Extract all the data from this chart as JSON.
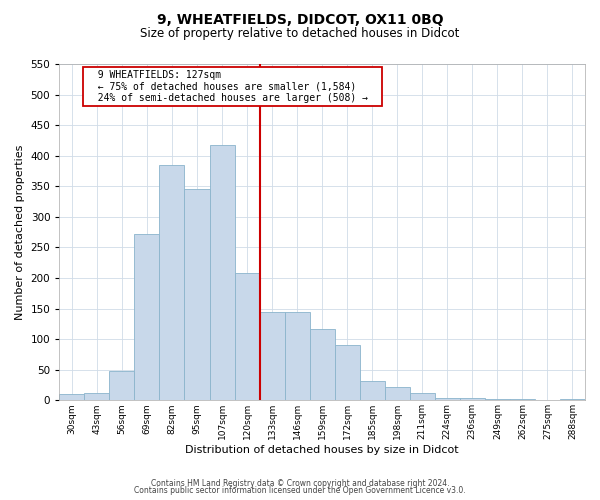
{
  "title": "9, WHEATFIELDS, DIDCOT, OX11 0BQ",
  "subtitle": "Size of property relative to detached houses in Didcot",
  "xlabel": "Distribution of detached houses by size in Didcot",
  "ylabel": "Number of detached properties",
  "bar_labels": [
    "30sqm",
    "43sqm",
    "56sqm",
    "69sqm",
    "82sqm",
    "95sqm",
    "107sqm",
    "120sqm",
    "133sqm",
    "146sqm",
    "159sqm",
    "172sqm",
    "185sqm",
    "198sqm",
    "211sqm",
    "224sqm",
    "236sqm",
    "249sqm",
    "262sqm",
    "275sqm",
    "288sqm"
  ],
  "bar_values": [
    10,
    12,
    48,
    272,
    385,
    345,
    418,
    208,
    144,
    144,
    117,
    90,
    32,
    22,
    12,
    3,
    3,
    2,
    2,
    0,
    2
  ],
  "bar_color": "#c8d8ea",
  "bar_edge_color": "#8ab4cc",
  "vline_x_index": 8,
  "vline_color": "#cc0000",
  "annotation_title": "9 WHEATFIELDS: 127sqm",
  "annotation_line1": "← 75% of detached houses are smaller (1,584)",
  "annotation_line2": "24% of semi-detached houses are larger (508) →",
  "annotation_box_color": "#ffffff",
  "annotation_box_edge_color": "#cc0000",
  "ylim": [
    0,
    550
  ],
  "yticks": [
    0,
    50,
    100,
    150,
    200,
    250,
    300,
    350,
    400,
    450,
    500,
    550
  ],
  "footer1": "Contains HM Land Registry data © Crown copyright and database right 2024.",
  "footer2": "Contains public sector information licensed under the Open Government Licence v3.0.",
  "bg_color": "#ffffff",
  "grid_color": "#d0dce8"
}
